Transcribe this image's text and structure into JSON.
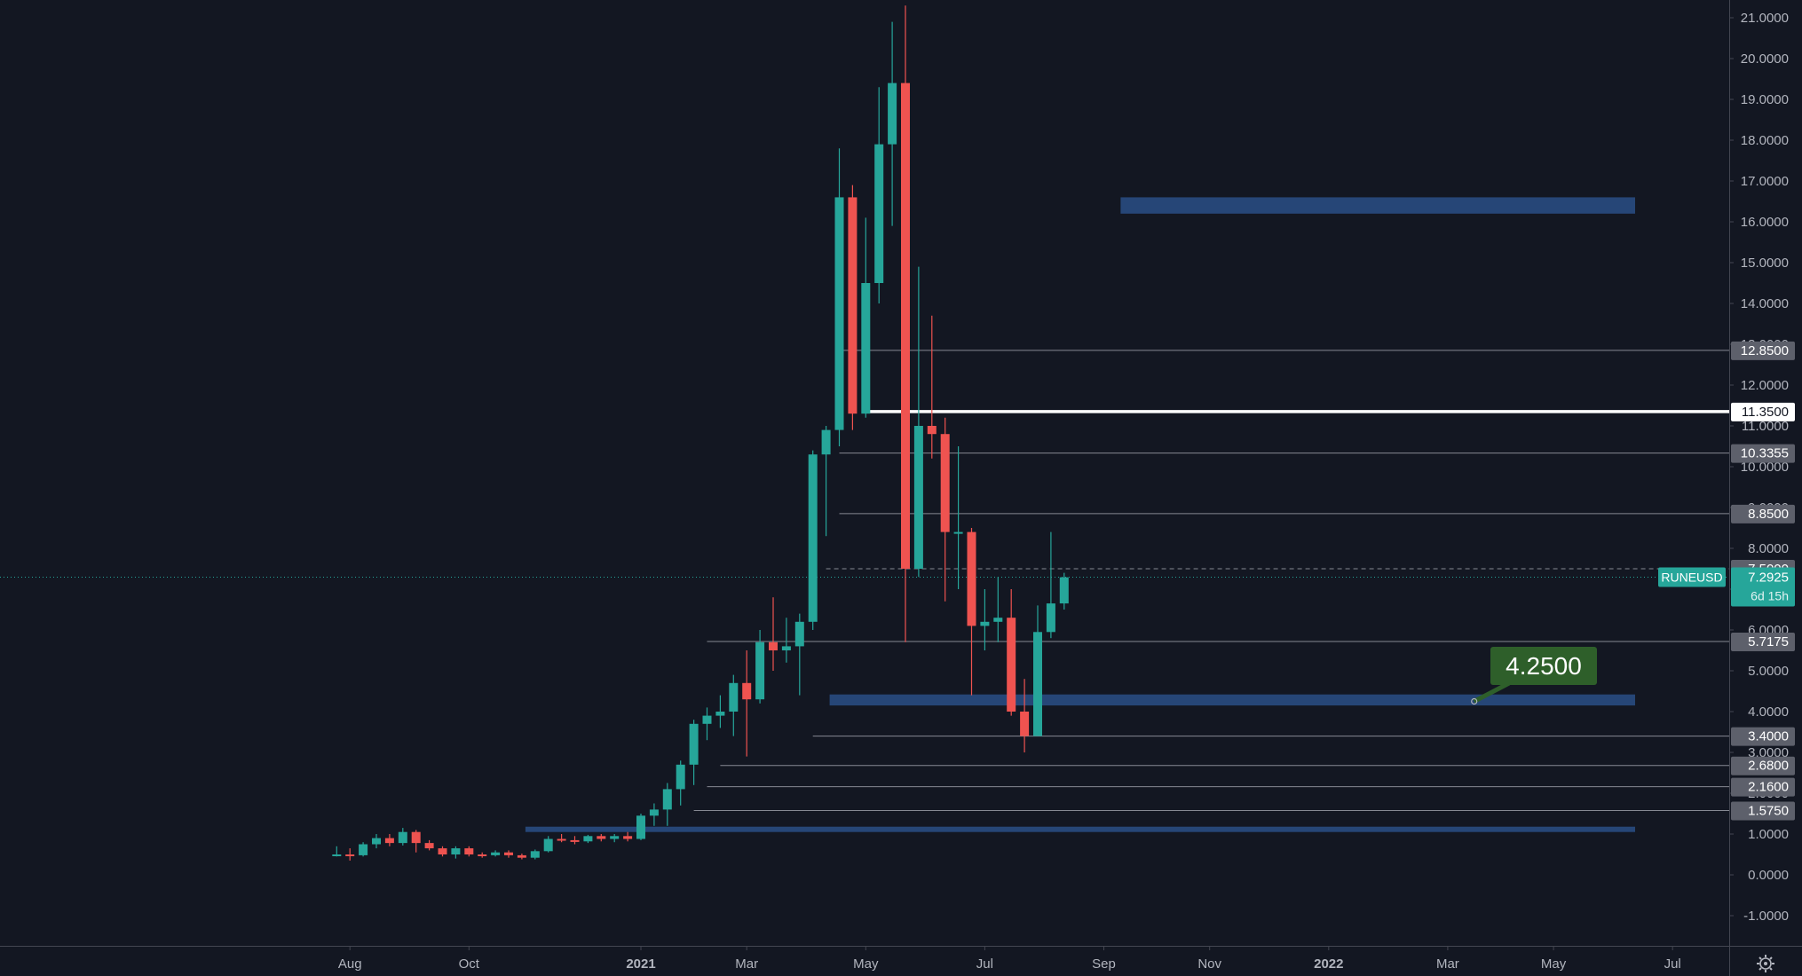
{
  "chart_data": {
    "type": "candlestick",
    "symbol": "RUNEUSD",
    "title": "",
    "xlabel": "",
    "ylabel": "",
    "ylim": [
      -1.6,
      21.3
    ],
    "y_ticks": [
      "-1.0000",
      "0.0000",
      "1.0000",
      "2.0000",
      "3.0000",
      "4.0000",
      "5.0000",
      "6.0000",
      "7.0000",
      "8.0000",
      "9.0000",
      "10.0000",
      "11.0000",
      "12.0000",
      "13.0000",
      "14.0000",
      "15.0000",
      "16.0000",
      "17.0000",
      "18.0000",
      "19.0000",
      "20.0000",
      "21.0000"
    ],
    "x_range_weeks": [
      -27,
      75
    ],
    "x_ticks": [
      {
        "label": "Aug",
        "week": -22,
        "bold": false
      },
      {
        "label": "Oct",
        "week": -13,
        "bold": false
      },
      {
        "label": "2021",
        "week": 0,
        "bold": true
      },
      {
        "label": "Mar",
        "week": 8,
        "bold": false
      },
      {
        "label": "May",
        "week": 17,
        "bold": false
      },
      {
        "label": "Jul",
        "week": 26,
        "bold": false
      },
      {
        "label": "Sep",
        "week": 35,
        "bold": false
      },
      {
        "label": "Nov",
        "week": 43,
        "bold": false
      },
      {
        "label": "2022",
        "week": 52,
        "bold": true
      },
      {
        "label": "Mar",
        "week": 61,
        "bold": false
      },
      {
        "label": "May",
        "week": 69,
        "bold": false
      },
      {
        "label": "Jul",
        "week": 78,
        "bold": false
      }
    ],
    "candles": [
      {
        "o": 0.5,
        "h": 0.7,
        "l": 0.45,
        "c": 0.5
      },
      {
        "o": 0.5,
        "h": 0.65,
        "l": 0.35,
        "c": 0.48
      },
      {
        "o": 0.48,
        "h": 0.8,
        "l": 0.45,
        "c": 0.75
      },
      {
        "o": 0.75,
        "h": 1.0,
        "l": 0.65,
        "c": 0.9
      },
      {
        "o": 0.9,
        "h": 1.0,
        "l": 0.7,
        "c": 0.78
      },
      {
        "o": 0.78,
        "h": 1.15,
        "l": 0.72,
        "c": 1.05
      },
      {
        "o": 1.05,
        "h": 1.1,
        "l": 0.55,
        "c": 0.78
      },
      {
        "o": 0.78,
        "h": 0.85,
        "l": 0.6,
        "c": 0.65
      },
      {
        "o": 0.65,
        "h": 0.7,
        "l": 0.45,
        "c": 0.5
      },
      {
        "o": 0.5,
        "h": 0.7,
        "l": 0.4,
        "c": 0.65
      },
      {
        "o": 0.65,
        "h": 0.7,
        "l": 0.45,
        "c": 0.5
      },
      {
        "o": 0.5,
        "h": 0.55,
        "l": 0.42,
        "c": 0.48
      },
      {
        "o": 0.48,
        "h": 0.6,
        "l": 0.45,
        "c": 0.55
      },
      {
        "o": 0.55,
        "h": 0.6,
        "l": 0.42,
        "c": 0.48
      },
      {
        "o": 0.48,
        "h": 0.52,
        "l": 0.38,
        "c": 0.42
      },
      {
        "o": 0.42,
        "h": 0.62,
        "l": 0.38,
        "c": 0.58
      },
      {
        "o": 0.58,
        "h": 0.95,
        "l": 0.55,
        "c": 0.88
      },
      {
        "o": 0.88,
        "h": 1.0,
        "l": 0.8,
        "c": 0.85
      },
      {
        "o": 0.85,
        "h": 0.95,
        "l": 0.75,
        "c": 0.82
      },
      {
        "o": 0.82,
        "h": 0.98,
        "l": 0.78,
        "c": 0.95
      },
      {
        "o": 0.95,
        "h": 1.0,
        "l": 0.82,
        "c": 0.88
      },
      {
        "o": 0.88,
        "h": 1.0,
        "l": 0.8,
        "c": 0.95
      },
      {
        "o": 0.95,
        "h": 1.05,
        "l": 0.82,
        "c": 0.88
      },
      {
        "o": 0.88,
        "h": 1.5,
        "l": 0.85,
        "c": 1.45
      },
      {
        "o": 1.45,
        "h": 1.75,
        "l": 1.2,
        "c": 1.6
      },
      {
        "o": 1.6,
        "h": 2.25,
        "l": 1.2,
        "c": 2.1
      },
      {
        "o": 2.1,
        "h": 2.8,
        "l": 1.7,
        "c": 2.7
      },
      {
        "o": 2.7,
        "h": 3.8,
        "l": 2.2,
        "c": 3.7
      },
      {
        "o": 3.7,
        "h": 4.1,
        "l": 3.3,
        "c": 3.9
      },
      {
        "o": 3.9,
        "h": 4.4,
        "l": 3.6,
        "c": 4.0
      },
      {
        "o": 4.0,
        "h": 4.9,
        "l": 3.4,
        "c": 4.7
      },
      {
        "o": 4.7,
        "h": 5.5,
        "l": 2.9,
        "c": 4.3
      },
      {
        "o": 4.3,
        "h": 6.0,
        "l": 4.2,
        "c": 5.7
      },
      {
        "o": 5.7,
        "h": 6.8,
        "l": 5.0,
        "c": 5.5
      },
      {
        "o": 5.5,
        "h": 6.3,
        "l": 5.2,
        "c": 5.6
      },
      {
        "o": 5.6,
        "h": 6.4,
        "l": 4.4,
        "c": 6.2
      },
      {
        "o": 6.2,
        "h": 10.4,
        "l": 6.0,
        "c": 10.3
      },
      {
        "o": 10.3,
        "h": 11.0,
        "l": 8.3,
        "c": 10.9
      },
      {
        "o": 10.9,
        "h": 17.8,
        "l": 10.5,
        "c": 16.6
      },
      {
        "o": 16.6,
        "h": 16.9,
        "l": 10.9,
        "c": 11.3
      },
      {
        "o": 11.3,
        "h": 16.1,
        "l": 11.2,
        "c": 14.5
      },
      {
        "o": 14.5,
        "h": 19.3,
        "l": 14.0,
        "c": 17.9
      },
      {
        "o": 17.9,
        "h": 20.9,
        "l": 15.9,
        "c": 19.4
      },
      {
        "o": 19.4,
        "h": 21.3,
        "l": 5.7,
        "c": 7.5
      },
      {
        "o": 7.5,
        "h": 14.9,
        "l": 7.3,
        "c": 11.0
      },
      {
        "o": 11.0,
        "h": 13.7,
        "l": 10.2,
        "c": 10.8
      },
      {
        "o": 10.8,
        "h": 11.2,
        "l": 6.7,
        "c": 8.4
      },
      {
        "o": 8.4,
        "h": 10.5,
        "l": 7.0,
        "c": 8.4
      },
      {
        "o": 8.4,
        "h": 8.5,
        "l": 4.4,
        "c": 6.1
      },
      {
        "o": 6.1,
        "h": 7.0,
        "l": 5.5,
        "c": 6.2
      },
      {
        "o": 6.2,
        "h": 7.3,
        "l": 5.7,
        "c": 6.3
      },
      {
        "o": 6.3,
        "h": 7.0,
        "l": 3.9,
        "c": 4.0
      },
      {
        "o": 4.0,
        "h": 4.8,
        "l": 3.0,
        "c": 3.4
      },
      {
        "o": 3.4,
        "h": 6.6,
        "l": 3.4,
        "c": 5.95
      },
      {
        "o": 5.95,
        "h": 8.4,
        "l": 5.8,
        "c": 6.65
      },
      {
        "o": 6.65,
        "h": 7.4,
        "l": 6.5,
        "c": 7.29
      }
    ],
    "zones": [
      {
        "from": 16.2,
        "to": 16.6
      },
      {
        "from": 4.15,
        "to": 4.42
      },
      {
        "from": 1.05,
        "to": 1.18
      }
    ],
    "levels": [
      {
        "value": 12.85,
        "label": "12.8500",
        "highlight": false
      },
      {
        "value": 11.35,
        "label": "11.3500",
        "highlight": true
      },
      {
        "value": 10.3355,
        "label": "10.3355",
        "highlight": false
      },
      {
        "value": 8.85,
        "label": "8.8500",
        "highlight": false
      },
      {
        "value": 7.5,
        "label": "7.5000",
        "highlight": false
      },
      {
        "value": 5.7175,
        "label": "5.7175",
        "highlight": false
      },
      {
        "value": 3.4,
        "label": "3.4000",
        "highlight": false
      },
      {
        "value": 2.68,
        "label": "2.6800",
        "highlight": false
      },
      {
        "value": 2.16,
        "label": "2.1600",
        "highlight": false
      },
      {
        "value": 1.575,
        "label": "1.5750",
        "highlight": false
      }
    ],
    "current_price": {
      "value": 7.2925,
      "label": "7.2925",
      "symbol_label": "RUNEUSD",
      "countdown": "6d 15h"
    },
    "annotation": {
      "label": "4.2500",
      "value": 4.25,
      "week": 63
    },
    "colors": {
      "background": "#131722",
      "up": "#26a69a",
      "down": "#ef5350",
      "zone": "#2a4f86",
      "level_line": "#868993",
      "highlight_line": "#ffffff",
      "label_bg": "#5d606b",
      "label_text": "#ffffff",
      "current_bg": "#26a69a",
      "annotation_bg": "#2e5f2a",
      "axis_text": "#b2b5be",
      "axis_line": "#434651"
    },
    "settings_icon": "gear-icon"
  }
}
